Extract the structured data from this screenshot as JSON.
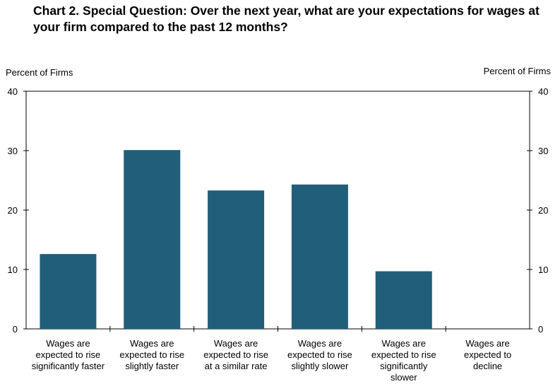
{
  "chart_data": {
    "type": "bar",
    "title_lines": [
      "Chart 2. Special Question: Over the next year, what are your expectations for wages at",
      "your firm compared to the past 12 months?"
    ],
    "ylabel_left": "Percent of Firms",
    "ylabel_right": "Percent of Firms",
    "ylim": [
      0,
      40
    ],
    "yticks": [
      0,
      10,
      20,
      30,
      40
    ],
    "grid": false,
    "legend": "none",
    "bar_color": "#215e79",
    "categories": [
      [
        "Wages are",
        "expected to rise",
        "significantly faster"
      ],
      [
        "Wages are",
        "expected to rise",
        "slightly faster"
      ],
      [
        "Wages are",
        "expected to rise",
        "at a similar rate"
      ],
      [
        "Wages are",
        "expected to rise",
        "slightly slower"
      ],
      [
        "Wages are",
        "expected to rise",
        "significantly",
        "slower"
      ],
      [
        "Wages are",
        "expected to",
        "decline"
      ]
    ],
    "values": [
      12.6,
      30.1,
      23.3,
      24.3,
      9.7,
      0
    ]
  }
}
